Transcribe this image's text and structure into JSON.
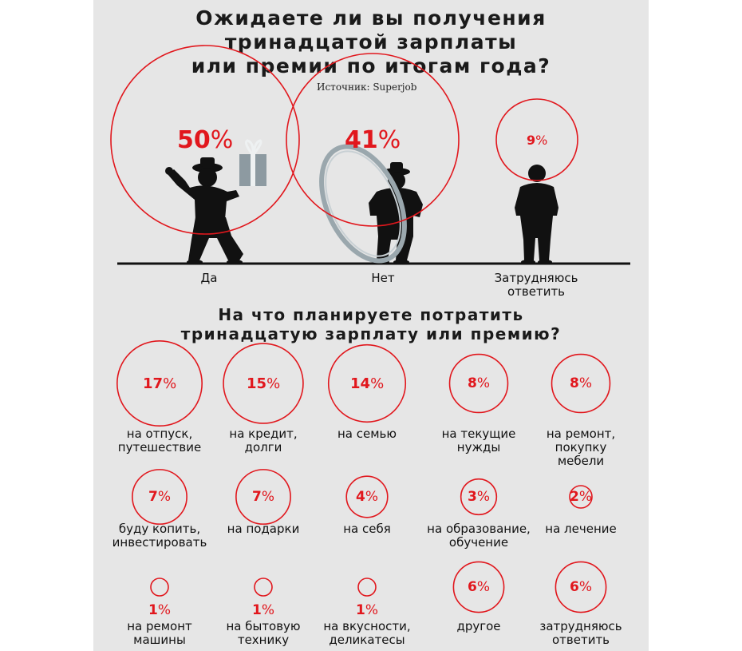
{
  "title": "Ожидаете ли вы получения\nтринадцатой зарплаты\nили премии по итогам года?",
  "source": "Источник: Superjob",
  "chart_data": [
    {
      "type": "bubble",
      "title": "Ожидаете ли вы получения тринадцатой зарплаты или премии по итогам года?",
      "categories": [
        "Да",
        "Нет",
        "Затрудняюсь ответить"
      ],
      "values": [
        50,
        41,
        9
      ],
      "unit": "%",
      "value_labels": [
        "50",
        "41",
        "9"
      ]
    },
    {
      "type": "bubble",
      "title": "На что планируете потратить тринадцатую зарплату или премию?",
      "categories": [
        "на отпуск, путешествие",
        "на кредит, долги",
        "на семью",
        "на текущие нужды",
        "на ремонт, покупку мебели",
        "буду копить, инвестировать",
        "на подарки",
        "на себя",
        "на образование, обучение",
        "на лечение",
        "на ремонт машины",
        "на бытовую технику",
        "на вкусности, деликатесы",
        "другое",
        "затрудняюсь ответить"
      ],
      "values": [
        17,
        15,
        14,
        8,
        8,
        7,
        7,
        4,
        3,
        2,
        1,
        1,
        1,
        6,
        6
      ],
      "unit": "%"
    }
  ],
  "q1_labels": [
    "Да",
    "Нет",
    "Затрудняюсь\nответить"
  ],
  "q2_title": "На что планируете потратить\nтринадцатую зарплату или премию?",
  "q2_labels": [
    "на отпуск,\nпутешествие",
    "на кредит,\nдолги",
    "на семью",
    "на текущие\nнужды",
    "на ремонт,\nпокупку\nмебели",
    "буду копить,\nинвестировать",
    "на подарки",
    "на себя",
    "на образование,\nобучение",
    "на лечение",
    "на ремонт\nмашины",
    "на бытовую\nтехнику",
    "на вкусности,\nделикатесы",
    "другое",
    "затрудняюсь\nответить"
  ],
  "colors": {
    "accent": "#e1171d",
    "panel": "#e6e6e6",
    "ink": "#111111",
    "ring": "#9aa7ad"
  },
  "icons": [
    "man-with-gift-icon",
    "man-with-hoop-icon",
    "standing-man-icon",
    "gift-box-icon"
  ]
}
